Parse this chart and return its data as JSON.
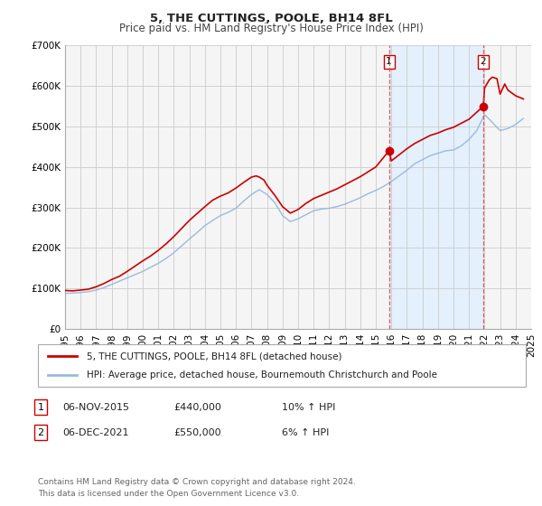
{
  "title": "5, THE CUTTINGS, POOLE, BH14 8FL",
  "subtitle": "Price paid vs. HM Land Registry's House Price Index (HPI)",
  "ylim": [
    0,
    700000
  ],
  "xlim": [
    1995,
    2025
  ],
  "yticks": [
    0,
    100000,
    200000,
    300000,
    400000,
    500000,
    600000,
    700000
  ],
  "ytick_labels": [
    "£0",
    "£100K",
    "£200K",
    "£300K",
    "£400K",
    "£500K",
    "£600K",
    "£700K"
  ],
  "xticks": [
    1995,
    1996,
    1997,
    1998,
    1999,
    2000,
    2001,
    2002,
    2003,
    2004,
    2005,
    2006,
    2007,
    2008,
    2009,
    2010,
    2011,
    2012,
    2013,
    2014,
    2015,
    2016,
    2017,
    2018,
    2019,
    2020,
    2021,
    2022,
    2023,
    2024,
    2025
  ],
  "sale1_x": 2015.85,
  "sale1_y": 440000,
  "sale2_x": 2021.92,
  "sale2_y": 550000,
  "sale1_label": "1",
  "sale2_label": "2",
  "sale1_date": "06-NOV-2015",
  "sale1_price": "£440,000",
  "sale1_hpi": "10% ↑ HPI",
  "sale2_date": "06-DEC-2021",
  "sale2_price": "£550,000",
  "sale2_hpi": "6% ↑ HPI",
  "red_line_color": "#cc0000",
  "blue_line_color": "#99bbdd",
  "vline_color": "#dd4444",
  "shade_color": "#ddeeff",
  "point_color": "#cc0000",
  "background_color": "#f5f5f5",
  "grid_color": "#cccccc",
  "legend_label_red": "5, THE CUTTINGS, POOLE, BH14 8FL (detached house)",
  "legend_label_blue": "HPI: Average price, detached house, Bournemouth Christchurch and Poole",
  "footer_text": "Contains HM Land Registry data © Crown copyright and database right 2024.\nThis data is licensed under the Open Government Licence v3.0.",
  "title_fontsize": 9.5,
  "subtitle_fontsize": 8.5,
  "tick_fontsize": 7.5,
  "legend_fontsize": 7.5,
  "footer_fontsize": 6.5,
  "info_fontsize": 8,
  "years_hpi": [
    1995,
    1995.5,
    1996,
    1996.5,
    1997,
    1997.5,
    1998,
    1998.5,
    1999,
    1999.5,
    2000,
    2000.5,
    2001,
    2001.5,
    2002,
    2002.5,
    2003,
    2003.5,
    2004,
    2004.5,
    2005,
    2005.5,
    2006,
    2006.5,
    2007,
    2007.5,
    2008,
    2008.5,
    2009,
    2009.5,
    2010,
    2010.5,
    2011,
    2011.5,
    2012,
    2012.5,
    2013,
    2013.5,
    2014,
    2014.5,
    2015,
    2015.5,
    2016,
    2016.5,
    2017,
    2017.5,
    2018,
    2018.5,
    2019,
    2019.5,
    2020,
    2020.5,
    2021,
    2021.5,
    2022,
    2022.5,
    2023,
    2023.5,
    2024,
    2024.5
  ],
  "vals_hpi": [
    88000,
    88500,
    90000,
    92000,
    96000,
    102000,
    110000,
    118000,
    126000,
    134000,
    142000,
    152000,
    162000,
    174000,
    188000,
    205000,
    222000,
    238000,
    255000,
    268000,
    280000,
    288000,
    298000,
    316000,
    332000,
    344000,
    332000,
    312000,
    280000,
    265000,
    272000,
    282000,
    292000,
    296000,
    298000,
    302000,
    308000,
    316000,
    324000,
    334000,
    342000,
    352000,
    364000,
    378000,
    392000,
    408000,
    418000,
    428000,
    434000,
    440000,
    442000,
    452000,
    468000,
    490000,
    530000,
    510000,
    490000,
    495000,
    505000,
    520000
  ],
  "years_red": [
    1995,
    1995.5,
    1996,
    1996.5,
    1997,
    1997.5,
    1998,
    1998.5,
    1999,
    1999.5,
    2000,
    2000.5,
    2001,
    2001.5,
    2002,
    2002.5,
    2003,
    2003.5,
    2004,
    2004.5,
    2005,
    2005.5,
    2006,
    2006.5,
    2007,
    2007.3,
    2007.5,
    2007.8,
    2008,
    2008.5,
    2009,
    2009.5,
    2010,
    2010.5,
    2011,
    2011.5,
    2012,
    2012.5,
    2013,
    2013.5,
    2014,
    2014.5,
    2015,
    2015.85,
    2016,
    2016.5,
    2017,
    2017.5,
    2018,
    2018.5,
    2019,
    2019.5,
    2020,
    2020.5,
    2021,
    2021.92,
    2022,
    2022.3,
    2022.5,
    2022.8,
    2023,
    2023.3,
    2023.5,
    2024,
    2024.5
  ],
  "vals_red": [
    95000,
    94000,
    96000,
    98000,
    104000,
    112000,
    122000,
    130000,
    142000,
    155000,
    168000,
    180000,
    194000,
    210000,
    228000,
    248000,
    268000,
    285000,
    302000,
    318000,
    328000,
    336000,
    348000,
    362000,
    375000,
    378000,
    375000,
    368000,
    355000,
    330000,
    302000,
    286000,
    295000,
    310000,
    322000,
    330000,
    338000,
    346000,
    356000,
    366000,
    376000,
    388000,
    400000,
    440000,
    415000,
    430000,
    445000,
    458000,
    468000,
    478000,
    484000,
    492000,
    498000,
    508000,
    518000,
    550000,
    595000,
    615000,
    622000,
    618000,
    580000,
    605000,
    590000,
    576000,
    568000
  ]
}
